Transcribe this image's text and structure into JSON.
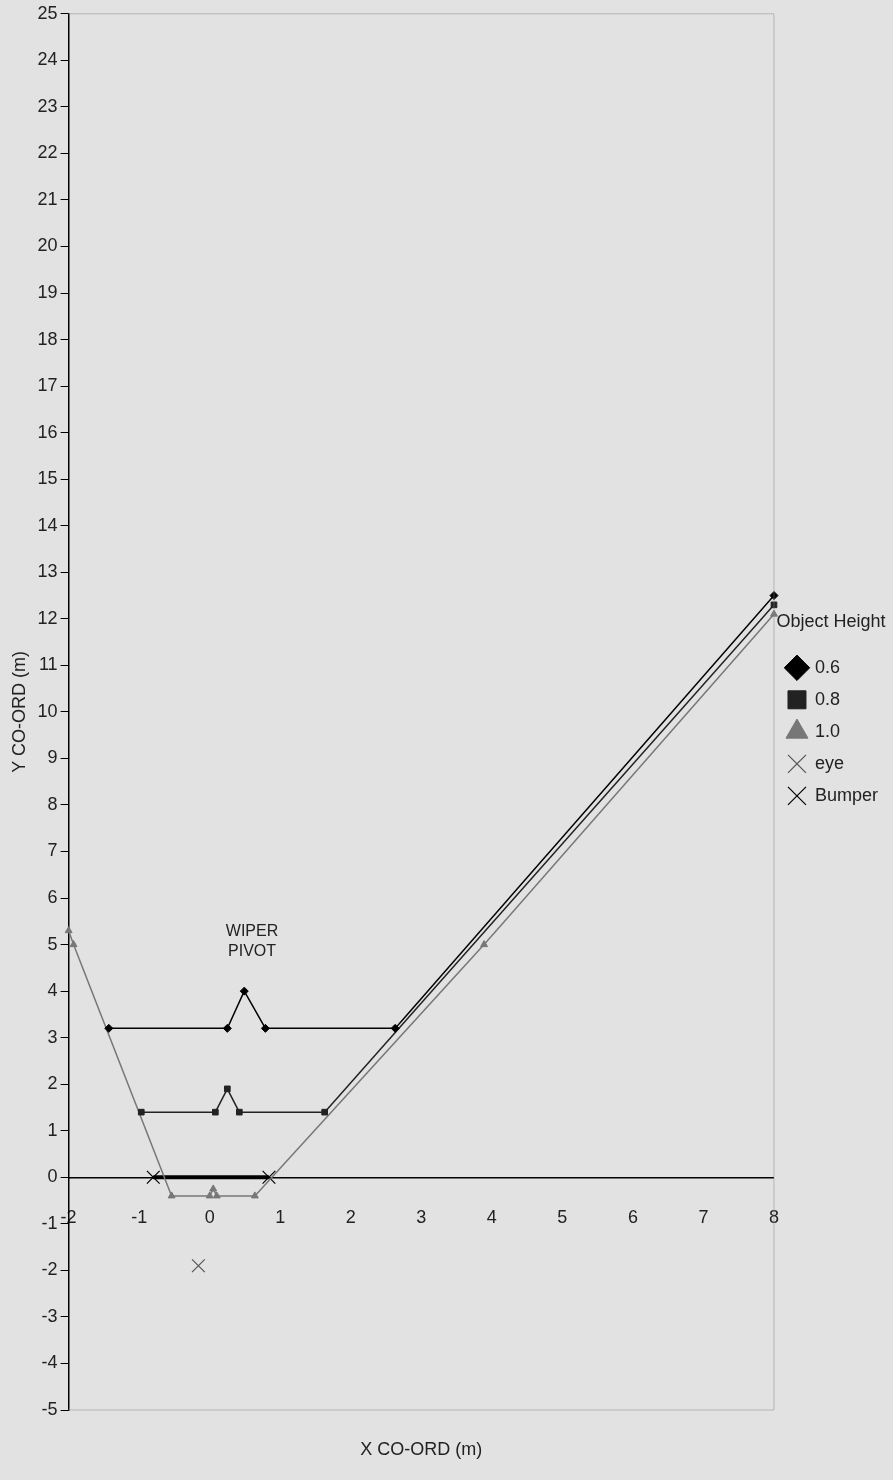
{
  "chart_data": {
    "type": "line",
    "xlabel": "X CO-ORD (m)",
    "ylabel": "Y CO-ORD (m)",
    "legend_title": "Object Height",
    "legend": "right",
    "grid": false,
    "xlim": [
      -2,
      8
    ],
    "xticks": [
      -2,
      -1,
      0,
      1,
      2,
      3,
      4,
      5,
      6,
      7,
      8
    ],
    "ylim": [
      -5,
      25
    ],
    "yticks": [
      -5,
      -4,
      -3,
      -2,
      -1,
      0,
      1,
      2,
      3,
      4,
      5,
      6,
      7,
      8,
      9,
      10,
      11,
      12,
      13,
      14,
      15,
      16,
      17,
      18,
      19,
      20,
      21,
      22,
      23,
      24,
      25
    ],
    "annotations": [
      "WIPER PIVOT"
    ],
    "series": [
      {
        "name": "0.6",
        "color": "#000000",
        "marker": "diamond",
        "x": [
          -1.43,
          0.25,
          0.49,
          0.79,
          2.63,
          8
        ],
        "values": [
          3.2,
          3.2,
          4.0,
          3.2,
          3.2,
          12.5
        ]
      },
      {
        "name": "0.8",
        "color": "#222222",
        "marker": "square",
        "x": [
          -0.97,
          0.08,
          0.25,
          0.42,
          1.63,
          8
        ],
        "values": [
          1.4,
          1.4,
          1.9,
          1.4,
          1.4,
          12.3
        ]
      },
      {
        "name": "1.0",
        "color": "#777777",
        "marker": "triangle",
        "x": [
          -2,
          -1.93,
          -0.54,
          0.0,
          0.05,
          0.1,
          0.64,
          3.89,
          8
        ],
        "values": [
          5.3,
          5.0,
          -0.4,
          -0.4,
          -0.25,
          -0.4,
          -0.4,
          5.0,
          12.1
        ]
      },
      {
        "name": "eye",
        "type": "scatter",
        "color": "#555555",
        "marker": "cross",
        "x": [
          -0.16
        ],
        "values": [
          -1.9
        ]
      },
      {
        "name": "Bumper",
        "color": "#000000",
        "marker": "cross",
        "x": [
          -0.8,
          0.84
        ],
        "values": [
          0,
          0
        ]
      }
    ]
  }
}
